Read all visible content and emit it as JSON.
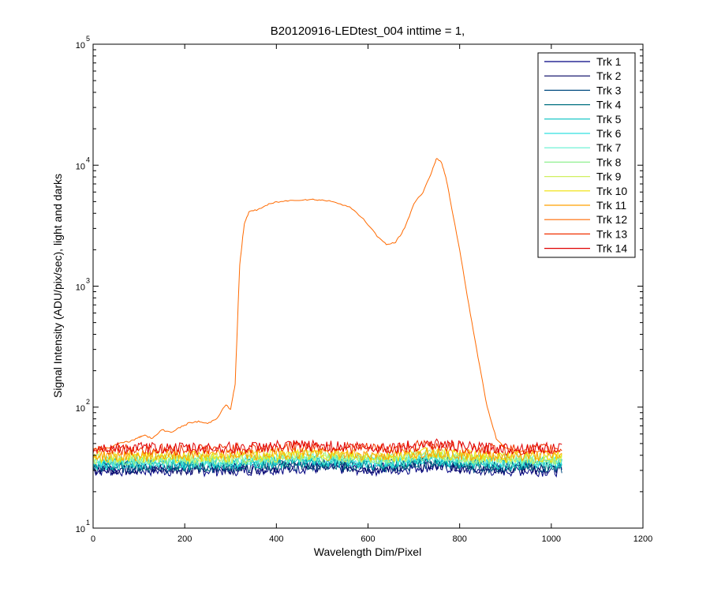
{
  "chart_data": {
    "type": "line",
    "title": "B20120916-LEDtest_004 inttime = 1,",
    "xlabel": "Wavelength Dim/Pixel",
    "ylabel": "Signal Intensity (ADU/pix/sec), light and darks",
    "x_scale": "linear",
    "y_scale": "log",
    "xlim": [
      0,
      1200
    ],
    "ylim": [
      10,
      100000
    ],
    "x_ticks": [
      0,
      200,
      400,
      600,
      800,
      1000,
      1200
    ],
    "y_ticks": [
      {
        "base": "10",
        "exp": "1",
        "value": 10
      },
      {
        "base": "10",
        "exp": "2",
        "value": 100
      },
      {
        "base": "10",
        "exp": "3",
        "value": 1000
      },
      {
        "base": "10",
        "exp": "4",
        "value": 10000
      },
      {
        "base": "10",
        "exp": "5",
        "value": 100000
      }
    ],
    "grid": false,
    "legend_position": "top-right",
    "series": [
      {
        "name": "Trk 1",
        "color": "#000080",
        "level": 30
      },
      {
        "name": "Trk 2",
        "color": "#000060",
        "level": 31
      },
      {
        "name": "Trk 3",
        "color": "#004a80",
        "level": 32
      },
      {
        "name": "Trk 4",
        "color": "#007080",
        "level": 33
      },
      {
        "name": "Trk 5",
        "color": "#00c0c0",
        "level": 34
      },
      {
        "name": "Trk 6",
        "color": "#30e0e0",
        "level": 35
      },
      {
        "name": "Trk 7",
        "color": "#60f0d0",
        "level": 36
      },
      {
        "name": "Trk 8",
        "color": "#90f090",
        "level": 37
      },
      {
        "name": "Trk 9",
        "color": "#d0f060",
        "level": 38
      },
      {
        "name": "Trk 10",
        "color": "#f0e000",
        "level": 39
      },
      {
        "name": "Trk 11",
        "color": "#ffa000",
        "level": 40
      },
      {
        "name": "Trk 12",
        "color": "#ff6a00",
        "level": 42,
        "x": [
          0,
          20,
          40,
          60,
          80,
          100,
          110,
          130,
          150,
          170,
          190,
          210,
          230,
          250,
          270,
          290,
          300,
          310,
          320,
          330,
          340,
          360,
          380,
          400,
          430,
          460,
          480,
          500,
          530,
          560,
          590,
          620,
          640,
          660,
          680,
          700,
          720,
          740,
          750,
          760,
          770,
          780,
          800,
          820,
          840,
          860,
          880,
          900,
          920,
          940,
          960,
          980,
          1000,
          1020
        ],
        "y": [
          45,
          45,
          47,
          51,
          52,
          56,
          59,
          55,
          65,
          62,
          68,
          74,
          76,
          73,
          81,
          105,
          95,
          155,
          1500,
          3300,
          4100,
          4300,
          4700,
          4950,
          5100,
          5200,
          5200,
          5150,
          4950,
          4500,
          3600,
          2600,
          2200,
          2300,
          3000,
          4800,
          6000,
          9000,
          11500,
          10500,
          8000,
          5000,
          2000,
          700,
          260,
          100,
          55,
          46,
          44,
          43,
          43,
          43,
          43,
          43
        ]
      },
      {
        "name": "Trk 13",
        "color": "#f03000",
        "level": 45
      },
      {
        "name": "Trk 14",
        "color": "#e00000",
        "level": 46
      }
    ]
  }
}
